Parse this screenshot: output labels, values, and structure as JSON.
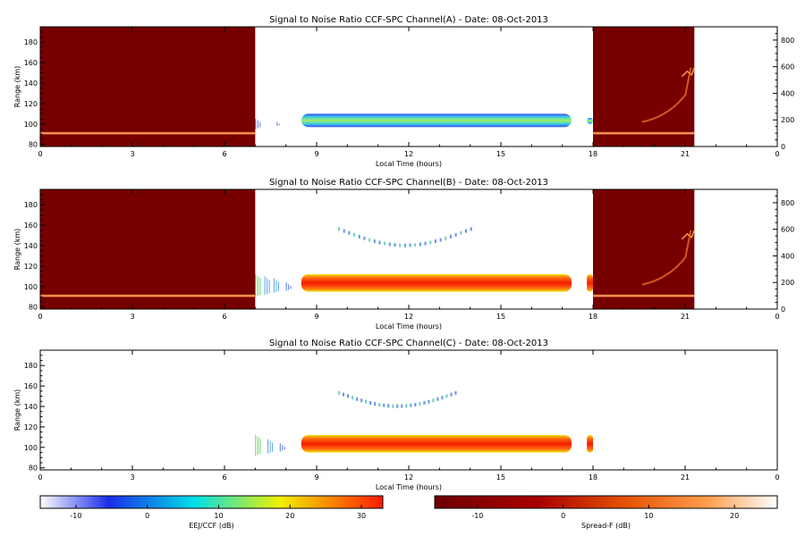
{
  "chart_data": [
    {
      "type": "heatmap",
      "title": "Signal to Noise Ratio CCF-SPC Channel(A) - Date: 08-Oct-2013",
      "xlabel": "Local Time (hours)",
      "ylabel": "Range (km)",
      "xlim": [
        0,
        24
      ],
      "ylim": [
        78,
        195
      ],
      "x_ticks": [
        "0",
        "3",
        "6",
        "9",
        "12",
        "15",
        "18",
        "21",
        "0"
      ],
      "y_ticks": [
        "80",
        "100",
        "120",
        "140",
        "160",
        "180"
      ],
      "y2_ticks": [
        "0",
        "200",
        "400",
        "600",
        "800"
      ],
      "y2lim": [
        0,
        900
      ],
      "spread_f_blocks": [
        {
          "x0": 0,
          "x1": 7,
          "layer_range_km": 91
        },
        {
          "x0": 18,
          "x1": 21.3,
          "layer_range_km": 91
        }
      ],
      "spread_f_plumes": [
        {
          "x0": 19.6,
          "x1": 21.3,
          "range_km_low": 102,
          "range_km_high": 155
        }
      ],
      "eej_echoes": [
        {
          "x0": 8.5,
          "x1": 17.3,
          "range_km_low": 97,
          "range_km_high": 110,
          "snr_db": 10
        },
        {
          "x0": 17.8,
          "x1": 18.0,
          "range_km_low": 100,
          "range_km_high": 106,
          "snr_db": 5
        }
      ],
      "eej_scatter_segments": [
        {
          "x": 7.0,
          "range_km_low": 95,
          "range_km_high": 105,
          "snr_db": 0
        },
        {
          "x": 7.7,
          "range_km_low": 98,
          "range_km_high": 102,
          "snr_db": 0
        }
      ]
    },
    {
      "type": "heatmap",
      "title": "Signal to Noise Ratio CCF-SPC Channel(B) - Date: 08-Oct-2013",
      "xlabel": "Local Time (hours)",
      "ylabel": "Range (km)",
      "xlim": [
        0,
        24
      ],
      "ylim": [
        78,
        195
      ],
      "x_ticks": [
        "0",
        "3",
        "6",
        "9",
        "12",
        "15",
        "18",
        "21",
        "0"
      ],
      "y_ticks": [
        "80",
        "100",
        "120",
        "140",
        "160",
        "180"
      ],
      "y2_ticks": [
        "0",
        "200",
        "400",
        "600",
        "800"
      ],
      "y2lim": [
        0,
        900
      ],
      "spread_f_blocks": [
        {
          "x0": 0,
          "x1": 7,
          "layer_range_km": 91
        },
        {
          "x0": 18,
          "x1": 21.3,
          "layer_range_km": 91
        }
      ],
      "spread_f_plumes": [
        {
          "x0": 19.6,
          "x1": 21.3,
          "range_km_low": 102,
          "range_km_high": 155
        }
      ],
      "eej_echoes": [
        {
          "x0": 8.5,
          "x1": 17.3,
          "range_km_low": 95,
          "range_km_high": 112,
          "snr_db": 27
        },
        {
          "x0": 17.8,
          "x1": 18.0,
          "range_km_low": 95,
          "range_km_high": 112,
          "snr_db": 22
        }
      ],
      "eej_scatter_segments": [
        {
          "x": 7.0,
          "range_km_low": 90,
          "range_km_high": 112,
          "snr_db": 15
        },
        {
          "x": 7.3,
          "range_km_low": 92,
          "range_km_high": 110,
          "snr_db": 10
        },
        {
          "x": 7.6,
          "range_km_low": 94,
          "range_km_high": 108,
          "snr_db": 5
        },
        {
          "x": 8.0,
          "range_km_low": 96,
          "range_km_high": 104,
          "snr_db": 0
        }
      ],
      "upper_echoes": [
        {
          "x0": 9.7,
          "x1": 14.0,
          "range_km_peak": 142,
          "range_km_edge": 158
        }
      ]
    },
    {
      "type": "heatmap",
      "title": "Signal to Noise Ratio CCF-SPC Channel(C) - Date: 08-Oct-2013",
      "xlabel": "Local Time (hours)",
      "ylabel": "Range (km)",
      "xlim": [
        0,
        24
      ],
      "ylim": [
        78,
        195
      ],
      "x_ticks": [
        "0",
        "3",
        "6",
        "9",
        "12",
        "15",
        "18",
        "21",
        "0"
      ],
      "y_ticks": [
        "80",
        "100",
        "120",
        "140",
        "160",
        "180"
      ],
      "spread_f_blocks": [],
      "spread_f_plumes": [],
      "eej_echoes": [
        {
          "x0": 8.5,
          "x1": 17.3,
          "range_km_low": 95,
          "range_km_high": 112,
          "snr_db": 27
        },
        {
          "x0": 17.8,
          "x1": 18.0,
          "range_km_low": 95,
          "range_km_high": 112,
          "snr_db": 22
        }
      ],
      "eej_scatter_segments": [
        {
          "x": 7.0,
          "range_km_low": 92,
          "range_km_high": 112,
          "snr_db": 15
        },
        {
          "x": 7.4,
          "range_km_low": 94,
          "range_km_high": 108,
          "snr_db": 5
        },
        {
          "x": 7.8,
          "range_km_low": 96,
          "range_km_high": 104,
          "snr_db": 0
        }
      ],
      "upper_echoes": [
        {
          "x0": 9.7,
          "x1": 13.5,
          "range_km_peak": 142,
          "range_km_edge": 155
        }
      ]
    }
  ],
  "colorbars": [
    {
      "label": "EEJ/CCF (dB)",
      "range": [
        -15,
        33
      ],
      "ticks": [
        "-10",
        "0",
        "10",
        "20",
        "30"
      ],
      "colors": [
        "#ffffff",
        "#1a2de8",
        "#00e0e8",
        "#f0f000",
        "#ff1a00"
      ]
    },
    {
      "label": "Spread-F (dB)",
      "range": [
        -15,
        25
      ],
      "ticks": [
        "-10",
        "0",
        "10",
        "20"
      ],
      "colors": [
        "#6e0000",
        "#a80000",
        "#e45000",
        "#ffa050",
        "#ffffff"
      ]
    }
  ]
}
